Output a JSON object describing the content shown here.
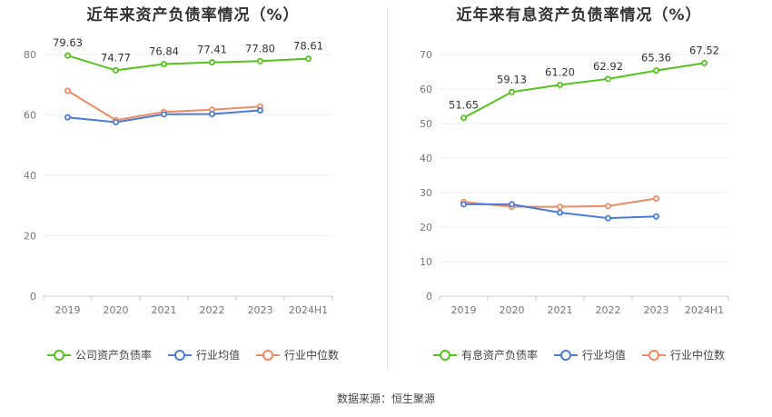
{
  "chart_data": [
    {
      "type": "line",
      "title": "近年来资产负债率情况（%）",
      "categories": [
        "2019",
        "2020",
        "2021",
        "2022",
        "2023",
        "2024H1"
      ],
      "ylim": [
        0,
        80
      ],
      "yticks": [
        0,
        20,
        40,
        60,
        80
      ],
      "grid": true,
      "legend_placement": "bottom",
      "series": [
        {
          "name": "公司资产负债率",
          "color": "#52c41a",
          "values": [
            79.63,
            74.77,
            76.84,
            77.41,
            77.8,
            78.61
          ],
          "labels": [
            "79.63",
            "74.77",
            "76.84",
            "77.41",
            "77.80",
            "78.61"
          ]
        },
        {
          "name": "行业均值",
          "color": "#4a7bd6",
          "values": [
            59.2,
            57.6,
            60.2,
            60.3,
            61.5,
            null
          ]
        },
        {
          "name": "行业中位数",
          "color": "#ee8a64",
          "values": [
            68.0,
            58.3,
            61.0,
            61.7,
            62.8,
            null
          ]
        }
      ]
    },
    {
      "type": "line",
      "title": "近年来有息资产负债率情况（%）",
      "categories": [
        "2019",
        "2020",
        "2021",
        "2022",
        "2023",
        "2024H1"
      ],
      "ylim": [
        0,
        70
      ],
      "yticks": [
        0,
        10,
        20,
        30,
        40,
        50,
        60,
        70
      ],
      "grid": true,
      "legend_placement": "bottom",
      "series": [
        {
          "name": "有息资产负债率",
          "color": "#52c41a",
          "values": [
            51.65,
            59.13,
            61.2,
            62.92,
            65.36,
            67.52
          ],
          "labels": [
            "51.65",
            "59.13",
            "61.20",
            "62.92",
            "65.36",
            "67.52"
          ]
        },
        {
          "name": "行业均值",
          "color": "#4a7bd6",
          "values": [
            26.6,
            26.6,
            24.2,
            22.6,
            23.1,
            null
          ]
        },
        {
          "name": "行业中位数",
          "color": "#ee8a64",
          "values": [
            27.3,
            25.9,
            25.9,
            26.1,
            28.3,
            null
          ]
        }
      ]
    }
  ],
  "source": "数据来源：恒生聚源"
}
